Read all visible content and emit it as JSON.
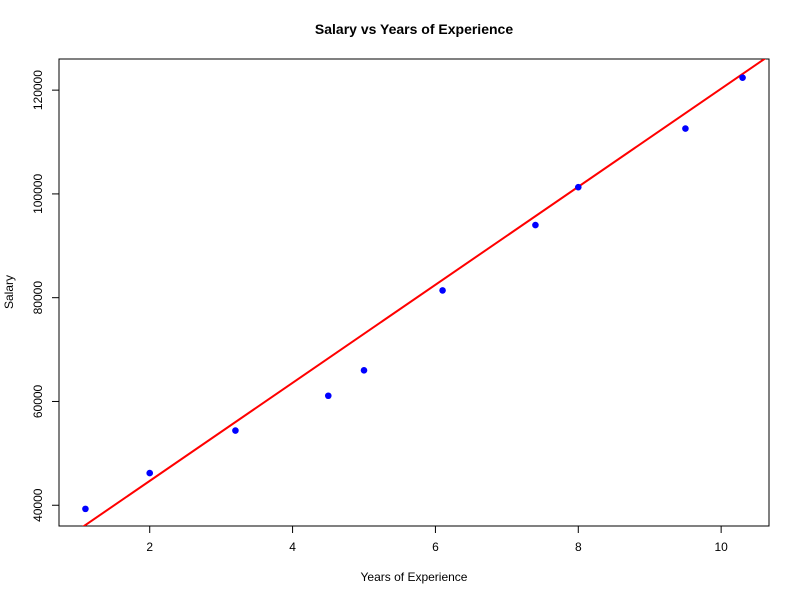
{
  "chart_data": {
    "type": "scatter",
    "title": "Salary vs Years of Experience",
    "xlabel": "Years of Experience",
    "ylabel": "Salary",
    "xlim": [
      0.73,
      10.67
    ],
    "ylim": [
      36000,
      126000
    ],
    "x_ticks": [
      2,
      4,
      6,
      8,
      10
    ],
    "y_ticks": [
      40000,
      60000,
      80000,
      100000,
      120000
    ],
    "grid": false,
    "series": [
      {
        "x": [
          1.1,
          2.0,
          3.2,
          4.5,
          5.0,
          6.1,
          7.4,
          8.0,
          9.5,
          10.3
        ],
        "y": [
          39300,
          46200,
          54400,
          61100,
          66000,
          81400,
          94000,
          101300,
          112600,
          122400
        ],
        "color": "#0000ff"
      }
    ],
    "fit_line": {
      "slope": 9449,
      "intercept": 25792,
      "color": "#ff0000"
    }
  }
}
